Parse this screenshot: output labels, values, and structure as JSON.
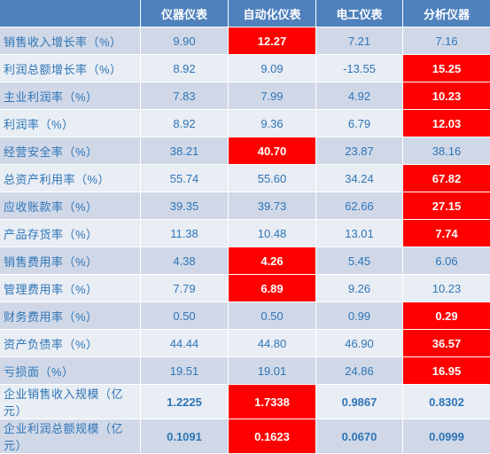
{
  "columns": [
    "",
    "仪器仪表",
    "自动化仪表",
    "电工仪表",
    "分析仪器"
  ],
  "highlight_color": "#ff0000",
  "header_color": "#4f81bd",
  "rows": [
    {
      "label": "销售收入增长率（%）",
      "values": [
        "9.90",
        "12.27",
        "7.21",
        "7.16"
      ],
      "highlight": [
        false,
        true,
        false,
        false
      ]
    },
    {
      "label": "利润总额增长率（%）",
      "values": [
        "8.92",
        "9.09",
        "-13.55",
        "15.25"
      ],
      "highlight": [
        false,
        false,
        false,
        true
      ]
    },
    {
      "label": "主业利润率（%）",
      "values": [
        "7.83",
        "7.99",
        "4.92",
        "10.23"
      ],
      "highlight": [
        false,
        false,
        false,
        true
      ]
    },
    {
      "label": "利润率（%）",
      "values": [
        "8.92",
        "9.36",
        "6.79",
        "12.03"
      ],
      "highlight": [
        false,
        false,
        false,
        true
      ]
    },
    {
      "label": "经营安全率（%）",
      "values": [
        "38.21",
        "40.70",
        "23.87",
        "38.16"
      ],
      "highlight": [
        false,
        true,
        false,
        false
      ]
    },
    {
      "label": "总资产利用率（%）",
      "values": [
        "55.74",
        "55.60",
        "34.24",
        "67.82"
      ],
      "highlight": [
        false,
        false,
        false,
        true
      ]
    },
    {
      "label": "应收账款率（%）",
      "values": [
        "39.35",
        "39.73",
        "62.66",
        "27.15"
      ],
      "highlight": [
        false,
        false,
        false,
        true
      ]
    },
    {
      "label": "产品存货率（%）",
      "values": [
        "11.38",
        "10.48",
        "13.01",
        "7.74"
      ],
      "highlight": [
        false,
        false,
        false,
        true
      ]
    },
    {
      "label": "销售费用率（%）",
      "values": [
        "4.38",
        "4.26",
        "5.45",
        "6.06"
      ],
      "highlight": [
        false,
        true,
        false,
        false
      ]
    },
    {
      "label": "管理费用率（%）",
      "values": [
        "7.79",
        "6.89",
        "9.26",
        "10.23"
      ],
      "highlight": [
        false,
        true,
        false,
        false
      ]
    },
    {
      "label": "财务费用率（%）",
      "values": [
        "0.50",
        "0.50",
        "0.99",
        "0.29"
      ],
      "highlight": [
        false,
        false,
        false,
        true
      ]
    },
    {
      "label": "资产负债率（%）",
      "values": [
        "44.44",
        "44.80",
        "46.90",
        "36.57"
      ],
      "highlight": [
        false,
        false,
        false,
        true
      ]
    },
    {
      "label": "亏损面（%）",
      "values": [
        "19.51",
        "19.01",
        "24.86",
        "16.95"
      ],
      "highlight": [
        false,
        false,
        false,
        true
      ]
    },
    {
      "label": "企业销售收入规模（亿元）",
      "values": [
        "1.2225",
        "1.7338",
        "0.9867",
        "0.8302"
      ],
      "highlight": [
        false,
        true,
        false,
        false
      ]
    },
    {
      "label": "企业利润总额规模（亿元）",
      "values": [
        "0.1091",
        "0.1623",
        "0.0670",
        "0.0999"
      ],
      "highlight": [
        false,
        true,
        false,
        false
      ]
    }
  ]
}
